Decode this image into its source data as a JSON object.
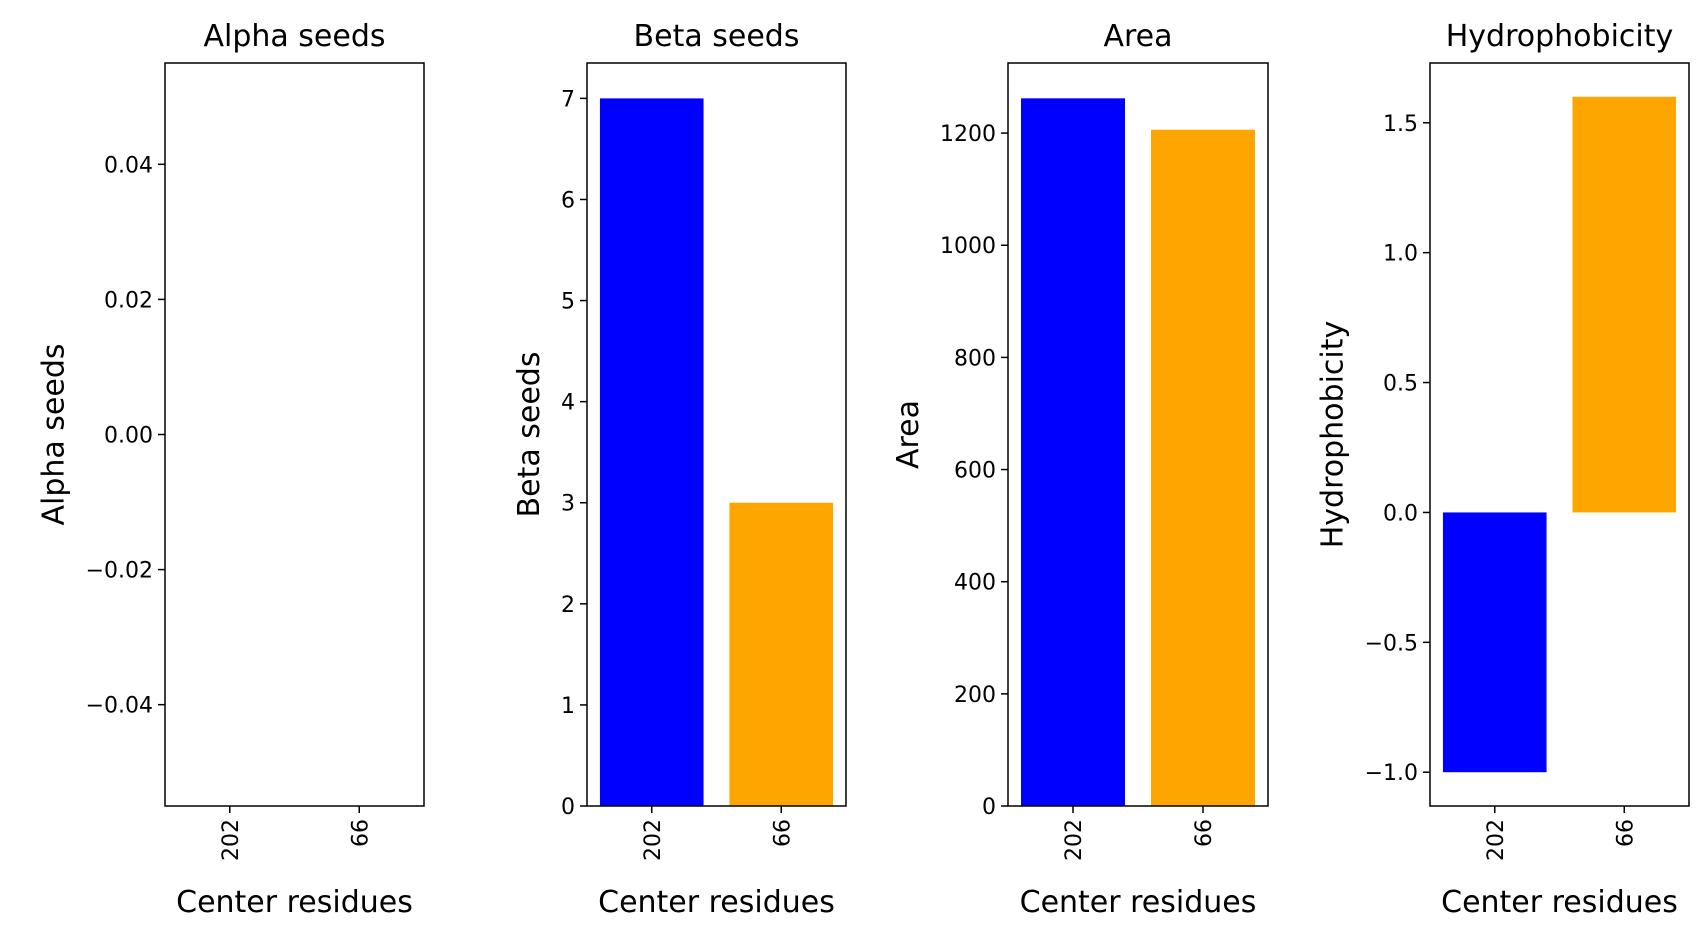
{
  "chart_data": [
    {
      "type": "bar",
      "title": "Alpha seeds",
      "xlabel": "Center residues",
      "ylabel": "Alpha seeds",
      "categories": [
        "202",
        "66"
      ],
      "values": [
        0,
        0
      ],
      "colors": [
        "#0000ff",
        "#ffa500"
      ],
      "ylim": [
        -0.055,
        0.055
      ],
      "yticks": [
        -0.04,
        -0.02,
        0.0,
        0.02,
        0.04
      ],
      "yticklabels": [
        "−0.04",
        "−0.02",
        "0.00",
        "0.02",
        "0.04"
      ],
      "grid": false
    },
    {
      "type": "bar",
      "title": "Beta seeds",
      "xlabel": "Center residues",
      "ylabel": "Beta seeds",
      "categories": [
        "202",
        "66"
      ],
      "values": [
        7,
        3
      ],
      "colors": [
        "#0000ff",
        "#ffa500"
      ],
      "ylim": [
        0,
        7.35
      ],
      "yticks": [
        0,
        1,
        2,
        3,
        4,
        5,
        6,
        7
      ],
      "yticklabels": [
        "0",
        "1",
        "2",
        "3",
        "4",
        "5",
        "6",
        "7"
      ],
      "grid": false
    },
    {
      "type": "bar",
      "title": "Area",
      "xlabel": "Center residues",
      "ylabel": "Area",
      "categories": [
        "202",
        "66"
      ],
      "values": [
        1262,
        1206
      ],
      "colors": [
        "#0000ff",
        "#ffa500"
      ],
      "ylim": [
        0,
        1325
      ],
      "yticks": [
        0,
        200,
        400,
        600,
        800,
        1000,
        1200
      ],
      "yticklabels": [
        "0",
        "200",
        "400",
        "600",
        "800",
        "1000",
        "1200"
      ],
      "grid": false
    },
    {
      "type": "bar",
      "title": "Hydrophobicity",
      "xlabel": "Center residues",
      "ylabel": "Hydrophobicity",
      "categories": [
        "202",
        "66"
      ],
      "values": [
        -1.0,
        1.6
      ],
      "colors": [
        "#0000ff",
        "#ffa500"
      ],
      "ylim": [
        -1.13,
        1.73
      ],
      "yticks": [
        -1.0,
        -0.5,
        0.0,
        0.5,
        1.0,
        1.5
      ],
      "yticklabels": [
        "−1.0",
        "−0.5",
        "0.0",
        "0.5",
        "1.0",
        "1.5"
      ],
      "grid": false
    }
  ]
}
